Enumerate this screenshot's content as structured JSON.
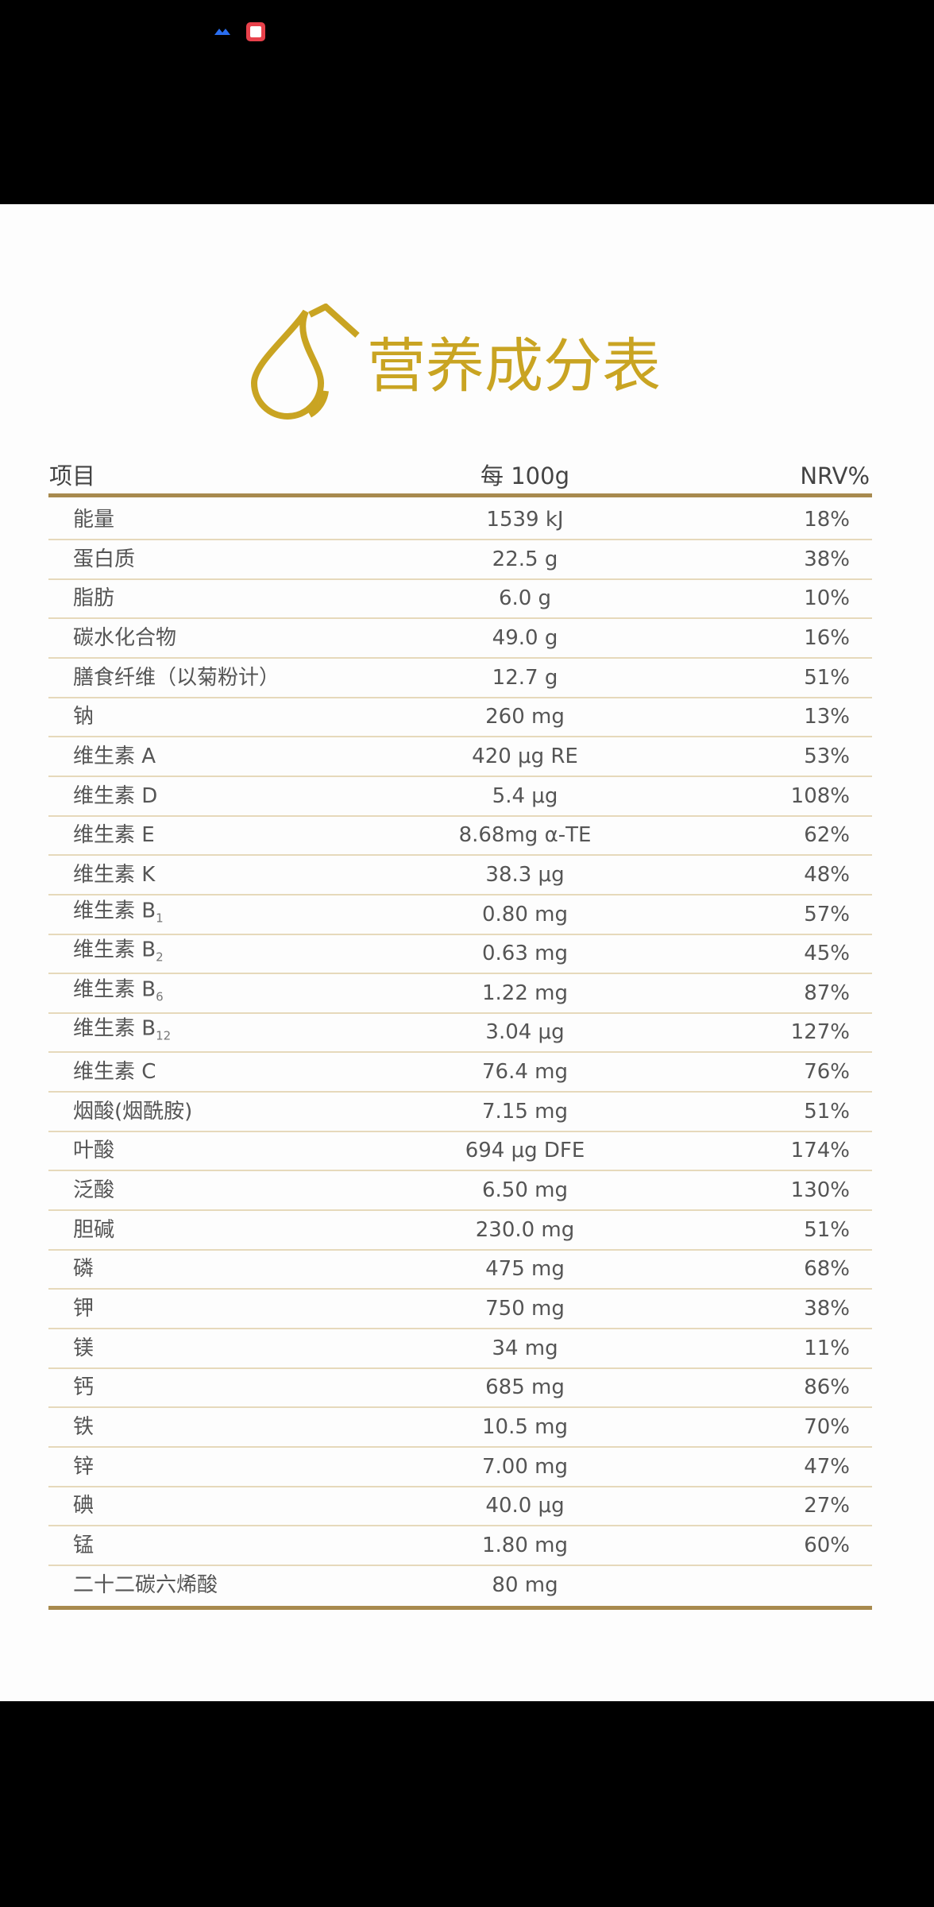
{
  "title": "营养成分表",
  "table": {
    "header": [
      "项目",
      "每 100g",
      "NRV%"
    ],
    "rows": [
      {
        "name": "能量",
        "amount": "1539 kJ",
        "nrv": "18%"
      },
      {
        "name": "蛋白质",
        "amount": "22.5 g",
        "nrv": "38%"
      },
      {
        "name": "脂肪",
        "amount": "6.0 g",
        "nrv": "10%"
      },
      {
        "name": "碳水化合物",
        "amount": "49.0 g",
        "nrv": "16%"
      },
      {
        "name": "膳食纤维（以菊粉计）",
        "amount": "12.7 g",
        "nrv": "51%"
      },
      {
        "name": "钠",
        "amount": "260 mg",
        "nrv": "13%"
      },
      {
        "name": "维生素 A",
        "amount": "420 μg RE",
        "nrv": "53%"
      },
      {
        "name": "维生素 D",
        "amount": "5.4 μg",
        "nrv": "108%"
      },
      {
        "name": "维生素 E",
        "amount": "8.68mg α-TE",
        "nrv": "62%"
      },
      {
        "name": "维生素 K",
        "amount": "38.3 μg",
        "nrv": "48%"
      },
      {
        "name": "维生素 B",
        "sub": "1",
        "amount": "0.80 mg",
        "nrv": "57%"
      },
      {
        "name": "维生素 B",
        "sub": "2",
        "amount": "0.63 mg",
        "nrv": "45%"
      },
      {
        "name": "维生素 B",
        "sub": "6",
        "amount": "1.22 mg",
        "nrv": "87%"
      },
      {
        "name": "维生素 B",
        "sub": "12",
        "amount": "3.04 μg",
        "nrv": "127%"
      },
      {
        "name": "维生素 C",
        "amount": "76.4 mg",
        "nrv": "76%"
      },
      {
        "name": "烟酸(烟酰胺)",
        "amount": "7.15 mg",
        "nrv": "51%"
      },
      {
        "name": "叶酸",
        "amount": "694 μg DFE",
        "nrv": "174%"
      },
      {
        "name": "泛酸",
        "amount": "6.50 mg",
        "nrv": "130%"
      },
      {
        "name": "胆碱",
        "amount": "230.0 mg",
        "nrv": "51%"
      },
      {
        "name": "磷",
        "amount": "475 mg",
        "nrv": "68%"
      },
      {
        "name": "钾",
        "amount": "750 mg",
        "nrv": "38%"
      },
      {
        "name": "镁",
        "amount": "34 mg",
        "nrv": "11%"
      },
      {
        "name": "钙",
        "amount": "685 mg",
        "nrv": "86%"
      },
      {
        "name": "铁",
        "amount": "10.5 mg",
        "nrv": "70%"
      },
      {
        "name": "锌",
        "amount": "7.00 mg",
        "nrv": "47%"
      },
      {
        "name": "碘",
        "amount": "40.0 μg",
        "nrv": "27%"
      },
      {
        "name": "锰",
        "amount": "1.80 mg",
        "nrv": "60%"
      },
      {
        "name": "二十二碳六烯酸",
        "amount": "80 mg"
      }
    ]
  }
}
